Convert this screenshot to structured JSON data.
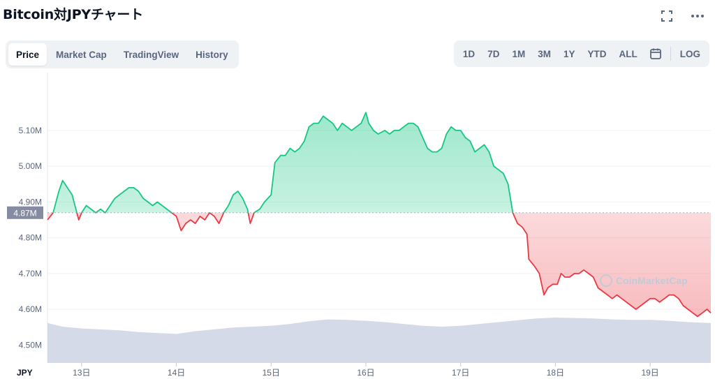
{
  "header": {
    "title": "Bitcoin対JPYチャート"
  },
  "top_icons": [
    "fullscreen-icon",
    "more-icon"
  ],
  "tabs": [
    {
      "label": "Price",
      "active": true
    },
    {
      "label": "Market Cap",
      "active": false
    },
    {
      "label": "TradingView",
      "active": false
    },
    {
      "label": "History",
      "active": false
    }
  ],
  "ranges": [
    "1D",
    "7D",
    "1M",
    "3M",
    "1Y",
    "YTD",
    "ALL",
    "LOG"
  ],
  "colors": {
    "up": "#16c784",
    "down": "#ea3943",
    "volume": "#cfd6e4",
    "marker": "#858ca2"
  },
  "watermark": "CoinMarketCap",
  "chart_data": {
    "type": "line",
    "currency_label": "JPY",
    "y_ticks": [
      {
        "value": 4.5,
        "label": "4.50M"
      },
      {
        "value": 4.6,
        "label": "4.60M"
      },
      {
        "value": 4.7,
        "label": "4.70M"
      },
      {
        "value": 4.8,
        "label": "4.80M"
      },
      {
        "value": 4.9,
        "label": "4.90M"
      },
      {
        "value": 5.0,
        "label": "5.00M"
      },
      {
        "value": 5.1,
        "label": "5.10M"
      }
    ],
    "ylim": [
      4.45,
      5.25
    ],
    "baseline": {
      "value": 4.87,
      "label": "4.87M"
    },
    "x_ticks": [
      {
        "t": 13,
        "label": "13日"
      },
      {
        "t": 14,
        "label": "14日"
      },
      {
        "t": 15,
        "label": "15日"
      },
      {
        "t": 16,
        "label": "16日"
      },
      {
        "t": 17,
        "label": "17日"
      },
      {
        "t": 18,
        "label": "18日"
      },
      {
        "t": 19,
        "label": "19日"
      }
    ],
    "xlim": [
      12.64,
      19.64
    ],
    "price_series": [
      [
        12.64,
        4.85
      ],
      [
        12.7,
        4.87
      ],
      [
        12.76,
        4.93
      ],
      [
        12.8,
        4.96
      ],
      [
        12.85,
        4.94
      ],
      [
        12.9,
        4.92
      ],
      [
        12.94,
        4.88
      ],
      [
        12.97,
        4.85
      ],
      [
        13.0,
        4.87
      ],
      [
        13.05,
        4.89
      ],
      [
        13.1,
        4.88
      ],
      [
        13.15,
        4.87
      ],
      [
        13.2,
        4.88
      ],
      [
        13.25,
        4.87
      ],
      [
        13.3,
        4.89
      ],
      [
        13.35,
        4.91
      ],
      [
        13.4,
        4.92
      ],
      [
        13.45,
        4.93
      ],
      [
        13.5,
        4.94
      ],
      [
        13.55,
        4.94
      ],
      [
        13.6,
        4.93
      ],
      [
        13.65,
        4.91
      ],
      [
        13.7,
        4.9
      ],
      [
        13.75,
        4.89
      ],
      [
        13.8,
        4.9
      ],
      [
        13.85,
        4.89
      ],
      [
        13.9,
        4.88
      ],
      [
        13.95,
        4.87
      ],
      [
        14.0,
        4.86
      ],
      [
        14.05,
        4.82
      ],
      [
        14.1,
        4.84
      ],
      [
        14.15,
        4.85
      ],
      [
        14.2,
        4.84
      ],
      [
        14.25,
        4.86
      ],
      [
        14.3,
        4.85
      ],
      [
        14.35,
        4.87
      ],
      [
        14.4,
        4.86
      ],
      [
        14.45,
        4.84
      ],
      [
        14.5,
        4.87
      ],
      [
        14.55,
        4.89
      ],
      [
        14.6,
        4.92
      ],
      [
        14.65,
        4.93
      ],
      [
        14.7,
        4.91
      ],
      [
        14.75,
        4.88
      ],
      [
        14.78,
        4.84
      ],
      [
        14.82,
        4.87
      ],
      [
        14.88,
        4.88
      ],
      [
        14.93,
        4.9
      ],
      [
        15.0,
        4.92
      ],
      [
        15.04,
        5.01
      ],
      [
        15.1,
        5.03
      ],
      [
        15.15,
        5.03
      ],
      [
        15.2,
        5.05
      ],
      [
        15.25,
        5.04
      ],
      [
        15.3,
        5.05
      ],
      [
        15.35,
        5.07
      ],
      [
        15.4,
        5.11
      ],
      [
        15.45,
        5.12
      ],
      [
        15.5,
        5.12
      ],
      [
        15.55,
        5.14
      ],
      [
        15.6,
        5.13
      ],
      [
        15.65,
        5.12
      ],
      [
        15.7,
        5.1
      ],
      [
        15.75,
        5.12
      ],
      [
        15.8,
        5.11
      ],
      [
        15.85,
        5.1
      ],
      [
        15.9,
        5.11
      ],
      [
        15.95,
        5.12
      ],
      [
        16.0,
        5.15
      ],
      [
        16.03,
        5.12
      ],
      [
        16.08,
        5.1
      ],
      [
        16.13,
        5.09
      ],
      [
        16.2,
        5.1
      ],
      [
        16.25,
        5.09
      ],
      [
        16.3,
        5.1
      ],
      [
        16.35,
        5.1
      ],
      [
        16.4,
        5.11
      ],
      [
        16.45,
        5.12
      ],
      [
        16.5,
        5.12
      ],
      [
        16.55,
        5.11
      ],
      [
        16.6,
        5.08
      ],
      [
        16.65,
        5.05
      ],
      [
        16.7,
        5.04
      ],
      [
        16.75,
        5.04
      ],
      [
        16.8,
        5.05
      ],
      [
        16.85,
        5.09
      ],
      [
        16.9,
        5.11
      ],
      [
        16.95,
        5.1
      ],
      [
        17.0,
        5.1
      ],
      [
        17.05,
        5.08
      ],
      [
        17.1,
        5.07
      ],
      [
        17.15,
        5.04
      ],
      [
        17.2,
        5.05
      ],
      [
        17.25,
        5.06
      ],
      [
        17.3,
        5.04
      ],
      [
        17.35,
        5.0
      ],
      [
        17.4,
        4.99
      ],
      [
        17.45,
        4.98
      ],
      [
        17.5,
        4.95
      ],
      [
        17.55,
        4.87
      ],
      [
        17.6,
        4.84
      ],
      [
        17.65,
        4.83
      ],
      [
        17.7,
        4.81
      ],
      [
        17.72,
        4.74
      ],
      [
        17.78,
        4.72
      ],
      [
        17.83,
        4.7
      ],
      [
        17.88,
        4.64
      ],
      [
        17.92,
        4.66
      ],
      [
        17.97,
        4.67
      ],
      [
        18.02,
        4.67
      ],
      [
        18.06,
        4.7
      ],
      [
        18.1,
        4.69
      ],
      [
        18.15,
        4.69
      ],
      [
        18.2,
        4.7
      ],
      [
        18.25,
        4.7
      ],
      [
        18.3,
        4.71
      ],
      [
        18.35,
        4.7
      ],
      [
        18.4,
        4.69
      ],
      [
        18.45,
        4.66
      ],
      [
        18.5,
        4.65
      ],
      [
        18.55,
        4.64
      ],
      [
        18.6,
        4.63
      ],
      [
        18.65,
        4.64
      ],
      [
        18.7,
        4.63
      ],
      [
        18.75,
        4.62
      ],
      [
        18.8,
        4.61
      ],
      [
        18.85,
        4.6
      ],
      [
        18.9,
        4.61
      ],
      [
        18.95,
        4.62
      ],
      [
        19.0,
        4.63
      ],
      [
        19.05,
        4.63
      ],
      [
        19.1,
        4.62
      ],
      [
        19.15,
        4.63
      ],
      [
        19.2,
        4.64
      ],
      [
        19.25,
        4.64
      ],
      [
        19.3,
        4.63
      ],
      [
        19.35,
        4.61
      ],
      [
        19.4,
        4.6
      ],
      [
        19.45,
        4.59
      ],
      [
        19.5,
        4.58
      ],
      [
        19.55,
        4.59
      ],
      [
        19.6,
        4.6
      ],
      [
        19.64,
        4.59
      ]
    ],
    "volume_series": [
      [
        12.64,
        0.88
      ],
      [
        12.8,
        0.8
      ],
      [
        13.0,
        0.76
      ],
      [
        13.2,
        0.74
      ],
      [
        13.4,
        0.72
      ],
      [
        13.6,
        0.68
      ],
      [
        13.8,
        0.66
      ],
      [
        14.0,
        0.64
      ],
      [
        14.2,
        0.7
      ],
      [
        14.4,
        0.74
      ],
      [
        14.6,
        0.78
      ],
      [
        14.8,
        0.8
      ],
      [
        15.0,
        0.82
      ],
      [
        15.2,
        0.86
      ],
      [
        15.4,
        0.92
      ],
      [
        15.6,
        0.96
      ],
      [
        15.8,
        0.95
      ],
      [
        16.0,
        0.93
      ],
      [
        16.2,
        0.9
      ],
      [
        16.4,
        0.86
      ],
      [
        16.6,
        0.82
      ],
      [
        16.8,
        0.8
      ],
      [
        17.0,
        0.82
      ],
      [
        17.2,
        0.86
      ],
      [
        17.4,
        0.9
      ],
      [
        17.6,
        0.94
      ],
      [
        17.8,
        0.98
      ],
      [
        18.0,
        1.0
      ],
      [
        18.2,
        0.99
      ],
      [
        18.4,
        0.98
      ],
      [
        18.6,
        0.96
      ],
      [
        18.8,
        0.95
      ],
      [
        19.0,
        0.95
      ],
      [
        19.2,
        0.93
      ],
      [
        19.4,
        0.9
      ],
      [
        19.64,
        0.88
      ]
    ]
  }
}
